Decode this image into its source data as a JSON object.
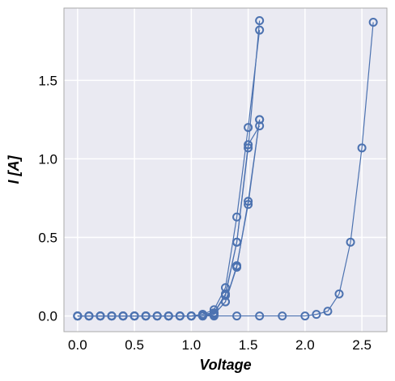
{
  "chart_data": {
    "type": "line",
    "title": "",
    "xlabel": "Voltage",
    "ylabel": "I [A]",
    "xlim": [
      -0.12,
      2.72
    ],
    "ylim": [
      -0.1,
      1.96
    ],
    "xticks": [
      "0.0",
      "0.5",
      "1.0",
      "1.5",
      "2.0",
      "2.5"
    ],
    "xtick_values": [
      0.0,
      0.5,
      1.0,
      1.5,
      2.0,
      2.5
    ],
    "yticks": [
      "0.0",
      "0.5",
      "1.0",
      "1.5"
    ],
    "ytick_values": [
      0.0,
      0.5,
      1.0,
      1.5
    ],
    "grid": true,
    "legend": "none",
    "colors": {
      "series": "#4c72b0",
      "background": "#eaeaf2",
      "grid": "#ffffff",
      "frame": "#aaaaaa"
    },
    "series": [
      {
        "x": [
          0.0,
          0.1,
          0.2,
          0.3,
          0.4,
          0.5,
          0.6,
          0.7,
          0.8,
          0.9,
          1.0,
          1.1,
          1.2,
          1.3,
          1.4,
          1.5,
          1.6
        ],
        "y": [
          0,
          0,
          0,
          0,
          0,
          0,
          0,
          0,
          0,
          0,
          0,
          0.01,
          0.04,
          0.18,
          0.63,
          1.2,
          1.82
        ]
      },
      {
        "x": [
          0.0,
          0.1,
          0.2,
          0.3,
          0.4,
          0.5,
          0.6,
          0.7,
          0.8,
          0.9,
          1.0,
          1.1,
          1.2,
          1.3,
          1.4,
          1.5,
          1.6
        ],
        "y": [
          0,
          0,
          0,
          0,
          0,
          0,
          0,
          0,
          0,
          0,
          0,
          0.01,
          0.02,
          0.14,
          0.47,
          1.07,
          1.88
        ]
      },
      {
        "x": [
          0.0,
          0.1,
          0.2,
          0.3,
          0.4,
          0.5,
          0.6,
          0.7,
          0.8,
          0.9,
          1.0,
          1.1,
          1.2,
          1.3,
          1.4,
          1.5,
          1.6
        ],
        "y": [
          0,
          0,
          0,
          0,
          0,
          0,
          0,
          0,
          0,
          0,
          0,
          0,
          0.01,
          0.09,
          0.31,
          0.73,
          1.25
        ]
      },
      {
        "x": [
          0.0,
          0.1,
          0.2,
          0.3,
          0.4,
          0.5,
          0.6,
          0.7,
          0.8,
          0.9,
          1.0,
          1.1,
          1.2,
          1.3,
          1.4,
          1.5,
          1.6
        ],
        "y": [
          0,
          0,
          0,
          0,
          0,
          0,
          0,
          0,
          0,
          0,
          0,
          0,
          0.02,
          0.13,
          0.47,
          1.09,
          1.21
        ]
      },
      {
        "x": [
          0.0,
          0.1,
          0.2,
          0.3,
          0.4,
          0.5,
          0.6,
          0.7,
          0.8,
          0.9,
          1.0,
          1.1,
          1.2,
          1.3,
          1.4,
          1.5,
          1.6
        ],
        "y": [
          0,
          0,
          0,
          0,
          0,
          0,
          0,
          0,
          0,
          0,
          0,
          0,
          0.01,
          0.09,
          0.32,
          0.71,
          1.25
        ]
      },
      {
        "x": [
          0.0,
          0.2,
          0.4,
          0.6,
          0.8,
          1.0,
          1.2,
          1.4,
          1.6,
          1.8,
          2.0,
          2.1,
          2.2,
          2.3,
          2.4,
          2.5,
          2.6
        ],
        "y": [
          0,
          0,
          0,
          0,
          0,
          0,
          0,
          0,
          0,
          0,
          0,
          0.01,
          0.03,
          0.14,
          0.47,
          1.07,
          1.87
        ]
      }
    ]
  }
}
